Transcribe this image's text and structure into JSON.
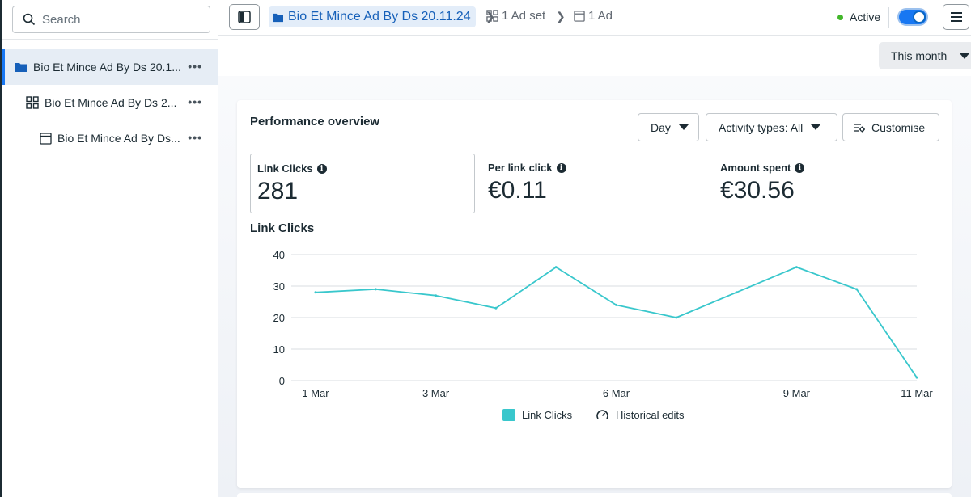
{
  "sidebar": {
    "search": {
      "placeholder": "Search",
      "value": ""
    },
    "items": [
      {
        "label": "Bio Et Mince Ad By Ds 20.1...",
        "icon": "folder-icon",
        "selected": true
      },
      {
        "label": "Bio Et Mince Ad By Ds 2...",
        "icon": "grid-icon",
        "selected": false
      },
      {
        "label": "Bio Et Mince Ad By Ds...",
        "icon": "ad-icon",
        "selected": false
      }
    ]
  },
  "topbar": {
    "campaign": "Bio Et Mince Ad By Ds 20.11.24",
    "adset": "1 Ad set",
    "ad": "1 Ad",
    "status": "Active",
    "accent": "#1877f2"
  },
  "period": "This month",
  "overview": {
    "title": "Performance overview",
    "controls": {
      "day": "Day",
      "activity": "Activity types: All",
      "customise": "Customise"
    },
    "metrics": [
      {
        "label": "Link Clicks",
        "value": "281"
      },
      {
        "label": "Per link click",
        "value": "€0.11"
      },
      {
        "label": "Amount spent",
        "value": "€30.56"
      }
    ]
  },
  "chart_data": {
    "type": "line",
    "title": "Link Clicks",
    "x": [
      "1 Mar",
      "2 Mar",
      "3 Mar",
      "4 Mar",
      "5 Mar",
      "6 Mar",
      "7 Mar",
      "8 Mar",
      "9 Mar",
      "10 Mar",
      "11 Mar"
    ],
    "x_tick_labels": [
      "1 Mar",
      "3 Mar",
      "6 Mar",
      "9 Mar",
      "11 Mar"
    ],
    "series": [
      {
        "name": "Link Clicks",
        "color": "#39c7cc",
        "values": [
          28,
          29,
          27,
          23,
          36,
          24,
          20,
          28,
          36,
          29,
          1
        ]
      }
    ],
    "ylim": [
      0,
      40
    ],
    "yticks": [
      0,
      10,
      20,
      30,
      40
    ],
    "grid": true,
    "legend": [
      {
        "label": "Link Clicks",
        "icon": "teal-square"
      },
      {
        "label": "Historical edits",
        "icon": "gauge-icon"
      }
    ]
  }
}
